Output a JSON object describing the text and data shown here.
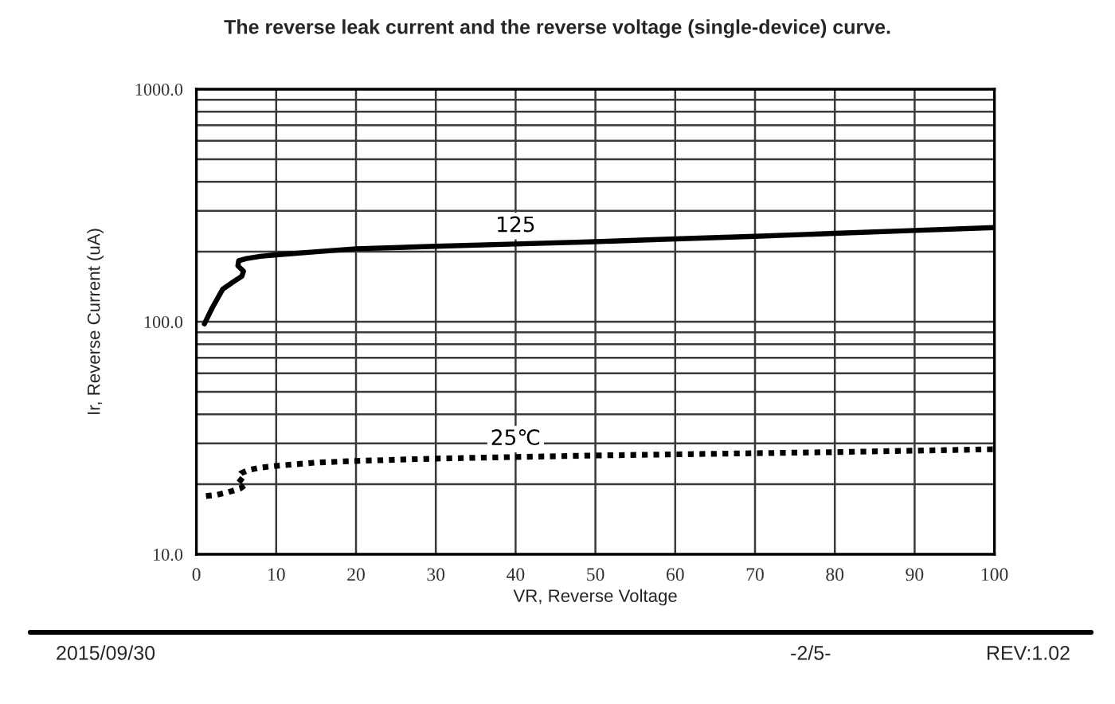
{
  "chart_data": {
    "type": "line",
    "title": "The reverse leak current and the reverse voltage (single-device) curve.",
    "xlabel": "VR, Reverse Voltage",
    "ylabel": "Ir, Reverse Current (uA)",
    "log": "y",
    "xlim": [
      0,
      100
    ],
    "xticks": [
      0,
      10,
      20,
      30,
      40,
      50,
      60,
      70,
      80,
      90,
      100
    ],
    "ylim": [
      10,
      1000
    ],
    "yticks": [
      {
        "value": 10,
        "label": "10.0"
      },
      {
        "value": 20,
        "label": null
      },
      {
        "value": 30,
        "label": null
      },
      {
        "value": 40,
        "label": null
      },
      {
        "value": 50,
        "label": null
      },
      {
        "value": 60,
        "label": null
      },
      {
        "value": 70,
        "label": null
      },
      {
        "value": 80,
        "label": null
      },
      {
        "value": 90,
        "label": null
      },
      {
        "value": 100,
        "label": "100.0"
      },
      {
        "value": 200,
        "label": null
      },
      {
        "value": 300,
        "label": null
      },
      {
        "value": 400,
        "label": null
      },
      {
        "value": 500,
        "label": null
      },
      {
        "value": 600,
        "label": null
      },
      {
        "value": 700,
        "label": null
      },
      {
        "value": 800,
        "label": null
      },
      {
        "value": 900,
        "label": null
      },
      {
        "value": 1000,
        "label": "1000.0"
      }
    ],
    "grid": true,
    "series": [
      {
        "name": "125",
        "color": "#000000",
        "line_style": "solid",
        "x": [
          1.0,
          2.0,
          3.3,
          4.7,
          5.7,
          5.9,
          5.2,
          5.3,
          6.3,
          8,
          10,
          15,
          20,
          30,
          40,
          50,
          60,
          70,
          80,
          90,
          100
        ],
        "values": [
          98,
          115,
          138,
          149,
          157,
          165,
          174,
          183,
          187,
          191,
          194,
          200,
          206,
          211,
          216,
          221,
          227,
          233,
          240,
          247,
          254
        ]
      },
      {
        "name": "25℃",
        "color": "#000000",
        "line_style": "dotted",
        "x": [
          1.2,
          2.5,
          4.0,
          5.5,
          6.2,
          5.2,
          5.6,
          6.5,
          8,
          10,
          15,
          20,
          30,
          40,
          50,
          60,
          70,
          80,
          90,
          100
        ],
        "values": [
          17.8,
          18.0,
          18.5,
          19.2,
          20.0,
          21.3,
          22.3,
          23.0,
          23.6,
          24.0,
          24.8,
          25.2,
          25.8,
          26.2,
          26.6,
          26.9,
          27.2,
          27.5,
          27.9,
          28.3
        ]
      }
    ],
    "annotations": [
      "2015/09/30",
      "-2/5-",
      "REV:1.02"
    ]
  }
}
